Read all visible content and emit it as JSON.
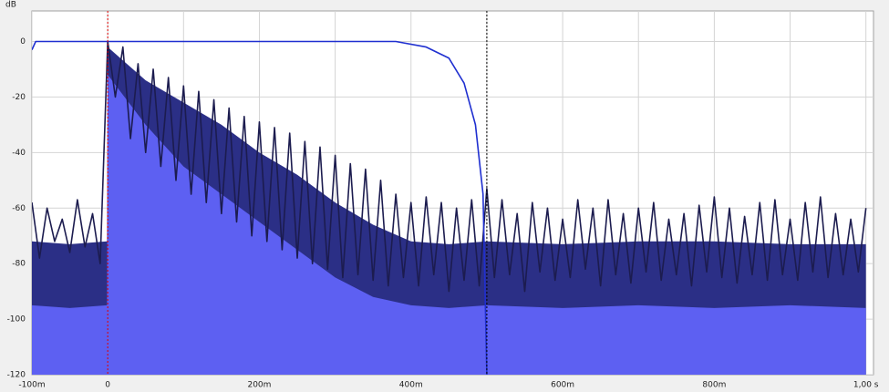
{
  "chart_data": {
    "type": "line",
    "y_label": "dB",
    "xlim": [
      -0.1,
      1.01
    ],
    "ylim": [
      -120,
      11
    ],
    "xticks": [
      {
        "value": -0.1,
        "label": "-100m"
      },
      0,
      {
        "value": 0.2,
        "label": "200m"
      },
      {
        "value": 0.4,
        "label": "400m"
      },
      {
        "value": 0.6,
        "label": "600m"
      },
      {
        "value": 0.8,
        "label": "800m"
      },
      {
        "value": 1.0,
        "label": "1,00 s"
      }
    ],
    "xminor": [
      0.1,
      0.3,
      0.5,
      0.7,
      0.9
    ],
    "yticks": [
      0,
      -20,
      -40,
      -60,
      -80,
      -100,
      -120
    ],
    "grid": true,
    "markers": [
      {
        "x": 0,
        "color": "#e00000"
      },
      {
        "x": 0.5,
        "color": "#000000"
      }
    ],
    "series": [
      {
        "kind": "area",
        "color": "#2b2f86",
        "x": [
          -0.1,
          -0.05,
          -0.001,
          0,
          0.05,
          0.1,
          0.15,
          0.2,
          0.25,
          0.3,
          0.35,
          0.4,
          0.45,
          0.5,
          0.6,
          0.7,
          0.8,
          0.9,
          1.0
        ],
        "values": [
          -72,
          -73,
          -72,
          -2,
          -14,
          -22,
          -30,
          -40,
          -48,
          -58,
          -66,
          -72,
          -73,
          -72,
          -73,
          -72,
          -72,
          -73,
          -73
        ]
      },
      {
        "kind": "area",
        "color": "#5d60f2",
        "x": [
          -0.1,
          -0.05,
          -0.001,
          0,
          0.05,
          0.1,
          0.15,
          0.2,
          0.25,
          0.3,
          0.35,
          0.4,
          0.45,
          0.5,
          0.6,
          0.7,
          0.8,
          0.9,
          1.0
        ],
        "values": [
          -95,
          -96,
          -95,
          -12,
          -30,
          -45,
          -55,
          -65,
          -75,
          -85,
          -92,
          -95,
          -96,
          -95,
          -96,
          -95,
          -96,
          -95,
          -96
        ]
      },
      {
        "kind": "line",
        "color": "#1c1c4f",
        "x": [
          -0.1,
          -0.09,
          -0.08,
          -0.07,
          -0.06,
          -0.05,
          -0.04,
          -0.03,
          -0.02,
          -0.01,
          0,
          0.01,
          0.02,
          0.03,
          0.04,
          0.05,
          0.06,
          0.07,
          0.08,
          0.09,
          0.1,
          0.11,
          0.12,
          0.13,
          0.14,
          0.15,
          0.16,
          0.17,
          0.18,
          0.19,
          0.2,
          0.21,
          0.22,
          0.23,
          0.24,
          0.25,
          0.26,
          0.27,
          0.28,
          0.29,
          0.3,
          0.31,
          0.32,
          0.33,
          0.34,
          0.35,
          0.36,
          0.37,
          0.38,
          0.39,
          0.4,
          0.41,
          0.42,
          0.43,
          0.44,
          0.45,
          0.46,
          0.47,
          0.48,
          0.49,
          0.5,
          0.51,
          0.52,
          0.53,
          0.54,
          0.55,
          0.56,
          0.57,
          0.58,
          0.59,
          0.6,
          0.61,
          0.62,
          0.63,
          0.64,
          0.65,
          0.66,
          0.67,
          0.68,
          0.69,
          0.7,
          0.71,
          0.72,
          0.73,
          0.74,
          0.75,
          0.76,
          0.77,
          0.78,
          0.79,
          0.8,
          0.81,
          0.82,
          0.83,
          0.84,
          0.85,
          0.86,
          0.87,
          0.88,
          0.89,
          0.9,
          0.91,
          0.92,
          0.93,
          0.94,
          0.95,
          0.96,
          0.97,
          0.98,
          0.99,
          1.0
        ],
        "values": [
          -58,
          -78,
          -60,
          -72,
          -64,
          -76,
          -57,
          -74,
          -62,
          -80,
          0,
          -20,
          -2,
          -35,
          -8,
          -40,
          -10,
          -45,
          -13,
          -50,
          -16,
          -55,
          -18,
          -58,
          -21,
          -62,
          -24,
          -65,
          -27,
          -70,
          -29,
          -72,
          -31,
          -75,
          -33,
          -78,
          -36,
          -80,
          -38,
          -82,
          -41,
          -85,
          -44,
          -84,
          -46,
          -86,
          -50,
          -88,
          -55,
          -85,
          -58,
          -88,
          -56,
          -84,
          -58,
          -90,
          -60,
          -86,
          -57,
          -88,
          -53,
          -85,
          -57,
          -84,
          -62,
          -90,
          -58,
          -83,
          -60,
          -86,
          -64,
          -85,
          -57,
          -82,
          -60,
          -88,
          -57,
          -84,
          -62,
          -87,
          -60,
          -83,
          -58,
          -86,
          -64,
          -84,
          -62,
          -88,
          -59,
          -83,
          -56,
          -85,
          -60,
          -87,
          -63,
          -84,
          -58,
          -86,
          -57,
          -84,
          -64,
          -86,
          -58,
          -83,
          -56,
          -85,
          -62,
          -84,
          -64,
          -83,
          -60
        ]
      },
      {
        "kind": "line",
        "color": "#1f2fd0",
        "x": [
          -0.1,
          -0.095,
          0.38,
          0.42,
          0.45,
          0.47,
          0.485,
          0.495,
          0.5
        ],
        "values": [
          -3,
          0,
          0,
          -2,
          -6,
          -15,
          -30,
          -55,
          -120
        ]
      }
    ]
  }
}
